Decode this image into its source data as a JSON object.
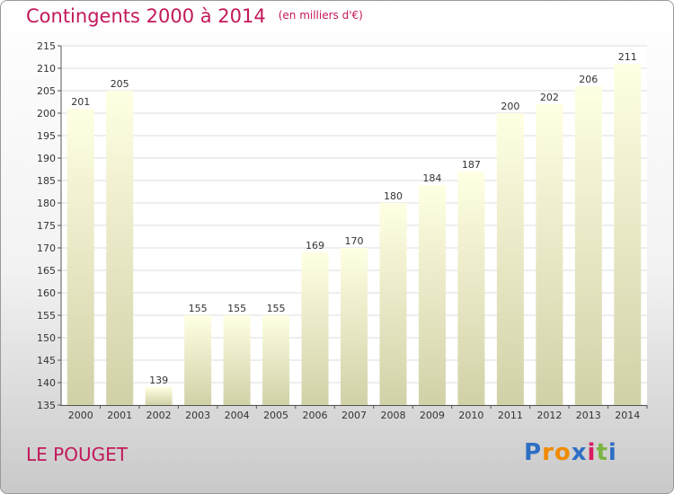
{
  "header": {
    "title": "Contingents 2000 à 2014",
    "subtitle": "(en milliers d'€)"
  },
  "footer": {
    "commune": "LE POUGET",
    "logo": [
      "P",
      "r",
      "o",
      "x",
      "i",
      "t",
      "i"
    ]
  },
  "colors": {
    "title": "#c2185b",
    "bar_top": "#ffffe3",
    "bar_bottom": "#d1d1a8",
    "grid": "#dddddd"
  },
  "chart_data": {
    "type": "bar",
    "title": "Contingents 2000 à 2014",
    "subtitle": "(en milliers d'€)",
    "xlabel": "",
    "ylabel": "",
    "categories": [
      "2000",
      "2001",
      "2002",
      "2003",
      "2004",
      "2005",
      "2006",
      "2007",
      "2008",
      "2009",
      "2010",
      "2011",
      "2012",
      "2013",
      "2014"
    ],
    "values": [
      201,
      205,
      139,
      155,
      155,
      155,
      169,
      170,
      180,
      184,
      187,
      200,
      202,
      206,
      211
    ],
    "ylim": [
      135,
      215
    ],
    "yticks": [
      135,
      140,
      145,
      150,
      155,
      160,
      165,
      170,
      175,
      180,
      185,
      190,
      195,
      200,
      205,
      210,
      215
    ],
    "grid": true,
    "data_labels": true
  }
}
